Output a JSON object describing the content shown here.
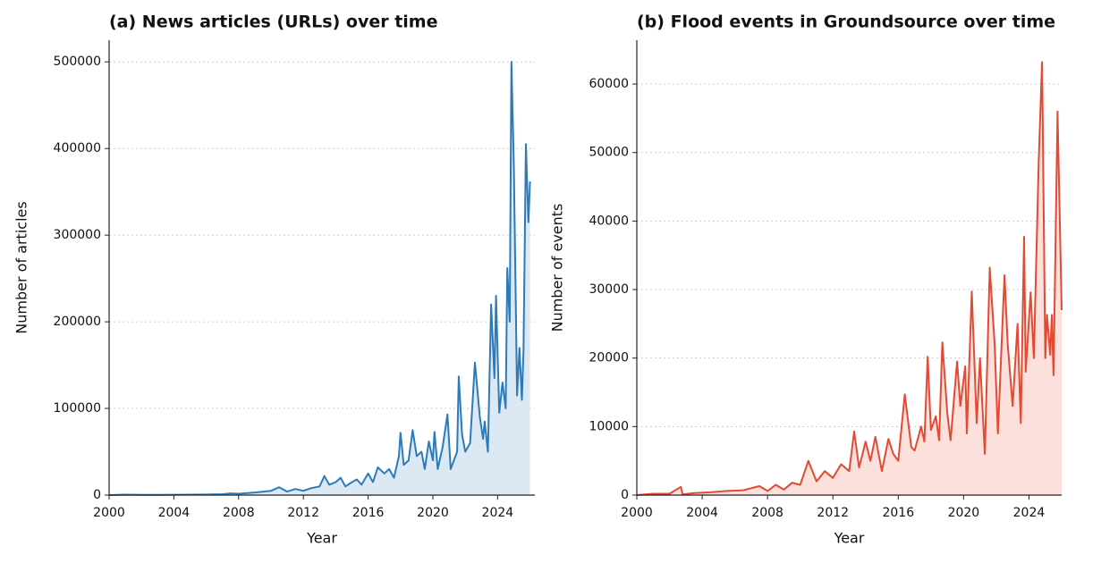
{
  "chart_data": [
    {
      "type": "line",
      "title": "(a)  News articles (URLs) over time",
      "xlabel": "Year",
      "ylabel": "Number of articles",
      "x": [
        2000,
        2001,
        2002,
        2003,
        2004,
        2005,
        2006,
        2007,
        2007.5,
        2008,
        2009,
        2010,
        2010.5,
        2011,
        2011.5,
        2012,
        2012.5,
        2013,
        2013.3,
        2013.6,
        2014,
        2014.3,
        2014.6,
        2015,
        2015.3,
        2015.6,
        2016,
        2016.3,
        2016.6,
        2017,
        2017.3,
        2017.6,
        2017.9,
        2018,
        2018.2,
        2018.5,
        2018.75,
        2019,
        2019.3,
        2019.5,
        2019.75,
        2020,
        2020.1,
        2020.3,
        2020.6,
        2020.9,
        2021.1,
        2021.5,
        2021.6,
        2021.8,
        2022,
        2022.3,
        2022.6,
        2022.9,
        2023.1,
        2023.2,
        2023.4,
        2023.6,
        2023.8,
        2023.9,
        2024.1,
        2024.3,
        2024.5,
        2024.6,
        2024.75,
        2024.85,
        2025.0,
        2025.1,
        2025.2,
        2025.35,
        2025.5,
        2025.6,
        2025.75,
        2025.9,
        2026
      ],
      "series": [
        {
          "color": "#2b7bba",
          "fill": "#dce9f4",
          "values": [
            0,
            500,
            300,
            300,
            400,
            500,
            600,
            1000,
            2000,
            1500,
            3000,
            5000,
            9000,
            4000,
            7000,
            5000,
            8000,
            10000,
            22000,
            12000,
            15000,
            20000,
            10000,
            15000,
            18000,
            12000,
            25000,
            15000,
            32000,
            25000,
            30000,
            20000,
            45000,
            72000,
            35000,
            40000,
            75000,
            45000,
            50000,
            30000,
            62000,
            40000,
            73000,
            30000,
            55000,
            93000,
            30000,
            50000,
            137000,
            70000,
            50000,
            60000,
            153000,
            90000,
            65000,
            85000,
            50000,
            220000,
            135000,
            230000,
            95000,
            130000,
            100000,
            262000,
            200000,
            500000,
            380000,
            250000,
            115000,
            170000,
            110000,
            165000,
            405000,
            315000,
            362000
          ]
        }
      ],
      "xlim": [
        2000,
        2026.3
      ],
      "xticks": [
        2000,
        2004,
        2008,
        2012,
        2016,
        2020,
        2024
      ],
      "ylim": [
        0,
        525000
      ],
      "yticks": [
        0,
        100000,
        200000,
        300000,
        400000,
        500000
      ],
      "grid": true
    },
    {
      "type": "line",
      "title": "(b)  Flood events in Groundsource over time",
      "xlabel": "Year",
      "ylabel": "Number of events",
      "x": [
        2000,
        2001,
        2002,
        2002.7,
        2002.8,
        2003.5,
        2004.5,
        2005.5,
        2006.5,
        2007.5,
        2008,
        2008.5,
        2009,
        2009.5,
        2010,
        2010.5,
        2011,
        2011.5,
        2012,
        2012.5,
        2013,
        2013.3,
        2013.6,
        2014,
        2014.3,
        2014.6,
        2015,
        2015.4,
        2015.7,
        2016,
        2016.4,
        2016.8,
        2017,
        2017.4,
        2017.6,
        2017.8,
        2018,
        2018.3,
        2018.5,
        2018.7,
        2019,
        2019.2,
        2019.6,
        2019.8,
        2020.1,
        2020.2,
        2020.5,
        2020.8,
        2021,
        2021.3,
        2021.6,
        2021.9,
        2022.1,
        2022.5,
        2022.7,
        2023,
        2023.3,
        2023.5,
        2023.7,
        2023.8,
        2024.1,
        2024.3,
        2024.6,
        2024.8,
        2025.0,
        2025.1,
        2025.3,
        2025.4,
        2025.5,
        2025.75,
        2026
      ],
      "series": [
        {
          "color": "#e34a33",
          "fill": "#fbe0dc",
          "values": [
            0,
            200,
            200,
            1200,
            100,
            300,
            400,
            600,
            700,
            1300,
            600,
            1500,
            800,
            1800,
            1500,
            5000,
            2000,
            3500,
            2500,
            4500,
            3500,
            9300,
            4000,
            7800,
            5000,
            8500,
            3500,
            8200,
            6000,
            5000,
            14700,
            7000,
            6500,
            10000,
            7800,
            20200,
            9500,
            11500,
            8000,
            22300,
            12000,
            8000,
            19500,
            13000,
            18800,
            9000,
            29700,
            10500,
            20000,
            6000,
            33200,
            22000,
            9000,
            32100,
            22000,
            13000,
            25000,
            10500,
            37700,
            18000,
            29600,
            20000,
            49000,
            63200,
            20000,
            26300,
            20500,
            26300,
            17500,
            56000,
            27000
          ]
        }
      ],
      "xlim": [
        2000,
        2026
      ],
      "xticks": [
        2000,
        2004,
        2008,
        2012,
        2016,
        2020,
        2024
      ],
      "ylim": [
        0,
        66400
      ],
      "yticks": [
        0,
        10000,
        20000,
        30000,
        40000,
        50000,
        60000
      ],
      "grid": true
    }
  ]
}
